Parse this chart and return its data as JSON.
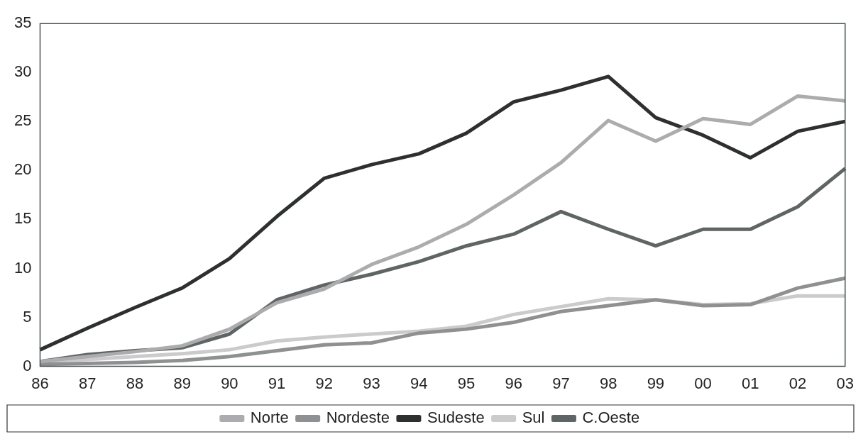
{
  "chart_data": {
    "type": "line",
    "categories": [
      "86",
      "87",
      "88",
      "89",
      "90",
      "91",
      "92",
      "93",
      "94",
      "95",
      "96",
      "97",
      "98",
      "99",
      "00",
      "01",
      "02",
      "03"
    ],
    "series": [
      {
        "name": "Norte",
        "color": "#acacae",
        "values": [
          0.5,
          1,
          1.5,
          2.1,
          3.8,
          6.5,
          7.9,
          10.4,
          12.2,
          14.5,
          17.5,
          20.8,
          25.1,
          23,
          25.3,
          24.7,
          27.6,
          27.1
        ]
      },
      {
        "name": "Nordeste",
        "color": "#8e9091",
        "values": [
          0.2,
          0.3,
          0.4,
          0.6,
          1,
          1.6,
          2.2,
          2.4,
          3.4,
          3.8,
          4.5,
          5.6,
          6.2,
          6.8,
          6.2,
          6.3,
          8,
          9
        ]
      },
      {
        "name": "Sudeste",
        "color": "#2e3030",
        "values": [
          1.7,
          3.9,
          6,
          8,
          11,
          15.3,
          19.2,
          20.6,
          21.7,
          23.8,
          27,
          28.2,
          29.6,
          25.4,
          23.6,
          21.3,
          24,
          25
        ]
      },
      {
        "name": "Sul",
        "color": "#cbcbcb",
        "values": [
          0.5,
          0.7,
          1,
          1.3,
          1.7,
          2.6,
          3,
          3.3,
          3.6,
          4.1,
          5.3,
          6.1,
          6.9,
          6.8,
          6.3,
          6.4,
          7.2,
          7.2
        ]
      },
      {
        "name": "C.Oeste",
        "color": "#5f6564",
        "values": [
          0.5,
          1.2,
          1.6,
          1.9,
          3.3,
          6.8,
          8.3,
          9.4,
          10.7,
          12.3,
          13.5,
          15.8,
          14,
          12.3,
          14,
          14,
          16.3,
          20.2
        ]
      }
    ],
    "ylim": [
      0,
      35
    ],
    "yticks": [
      0,
      5,
      10,
      15,
      20,
      25,
      30,
      35
    ],
    "grid": false,
    "legend": "bottom",
    "marker": "none",
    "line_style": "solid"
  }
}
